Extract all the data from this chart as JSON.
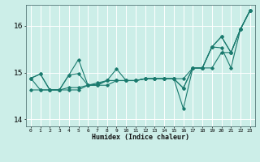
{
  "title": "",
  "xlabel": "Humidex (Indice chaleur)",
  "bg_color": "#cceee8",
  "line_color": "#1a7a6e",
  "grid_color": "#ffffff",
  "xlim": [
    -0.5,
    23.5
  ],
  "ylim": [
    13.85,
    16.45
  ],
  "yticks": [
    14,
    15,
    16
  ],
  "xticks": [
    0,
    1,
    2,
    3,
    4,
    5,
    6,
    7,
    8,
    9,
    10,
    11,
    12,
    13,
    14,
    15,
    16,
    17,
    18,
    19,
    20,
    21,
    22,
    23
  ],
  "line1_y": [
    14.88,
    14.97,
    14.63,
    14.63,
    14.95,
    15.28,
    14.73,
    14.75,
    14.83,
    15.08,
    14.83,
    14.83,
    14.87,
    14.87,
    14.87,
    14.87,
    14.67,
    15.1,
    15.1,
    15.55,
    15.77,
    15.43,
    15.93,
    16.33
  ],
  "line2_y": [
    14.88,
    14.97,
    14.63,
    14.63,
    14.68,
    14.68,
    14.73,
    14.73,
    14.83,
    14.83,
    14.83,
    14.83,
    14.87,
    14.87,
    14.87,
    14.87,
    14.67,
    15.1,
    15.1,
    15.55,
    15.77,
    15.43,
    15.93,
    16.33
  ],
  "line3_y": [
    14.88,
    14.63,
    14.63,
    14.63,
    14.95,
    14.98,
    14.73,
    14.78,
    14.83,
    14.83,
    14.83,
    14.83,
    14.87,
    14.87,
    14.87,
    14.87,
    14.23,
    15.1,
    15.1,
    15.55,
    15.53,
    15.1,
    15.93,
    16.33
  ],
  "line4_y": [
    14.63,
    14.63,
    14.63,
    14.63,
    14.63,
    14.63,
    14.73,
    14.73,
    14.73,
    14.83,
    14.83,
    14.83,
    14.87,
    14.87,
    14.87,
    14.87,
    14.87,
    15.1,
    15.1,
    15.1,
    15.43,
    15.43,
    15.93,
    16.33
  ]
}
